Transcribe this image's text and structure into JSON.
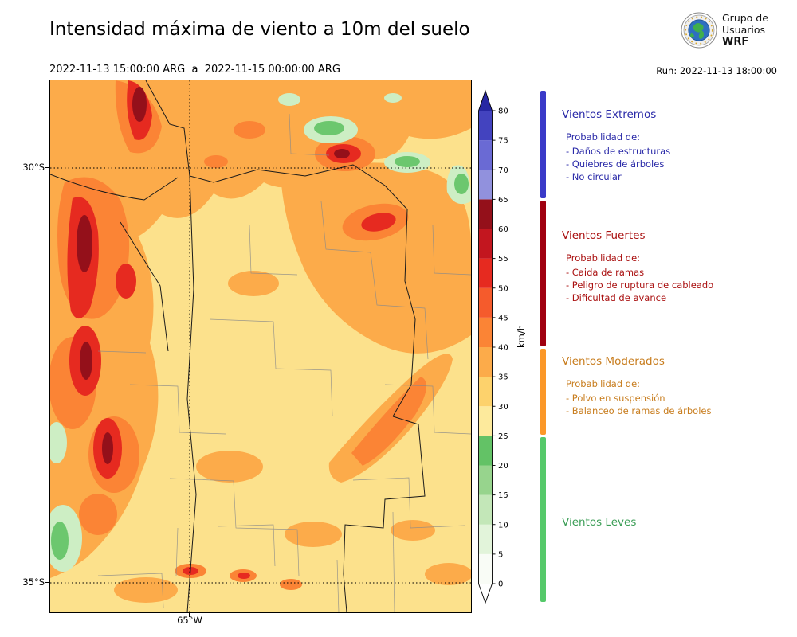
{
  "header": {
    "title": "Intensidad máxima de viento a 10m del suelo",
    "date_range": "2022-11-13 15:00:00 ARG  a  2022-11-15 00:00:00 ARG",
    "run_label": "Run: 2022-11-13 18:00:00",
    "logo": {
      "line1": "Grupo de",
      "line2": "Usuarios",
      "line3": "WRF"
    }
  },
  "map": {
    "lat_labels": [
      "30°S",
      "35°S"
    ],
    "lon_label": "65°W"
  },
  "colorbar": {
    "unit": "km/h",
    "tick_values": [
      0,
      5,
      10,
      15,
      20,
      25,
      30,
      35,
      40,
      45,
      50,
      55,
      60,
      65,
      70,
      75,
      80
    ],
    "segments": [
      {
        "from": 0,
        "to": 5,
        "color": "#f9fcf6"
      },
      {
        "from": 5,
        "to": 10,
        "color": "#e2f4da"
      },
      {
        "from": 10,
        "to": 15,
        "color": "#c3e7b8"
      },
      {
        "from": 15,
        "to": 20,
        "color": "#97d48d"
      },
      {
        "from": 20,
        "to": 25,
        "color": "#63c266"
      },
      {
        "from": 25,
        "to": 30,
        "color": "#fdea9c"
      },
      {
        "from": 30,
        "to": 35,
        "color": "#fdd26c"
      },
      {
        "from": 35,
        "to": 40,
        "color": "#fcab4a"
      },
      {
        "from": 40,
        "to": 45,
        "color": "#fb8435"
      },
      {
        "from": 45,
        "to": 50,
        "color": "#f55b2c"
      },
      {
        "from": 50,
        "to": 55,
        "color": "#e62a20"
      },
      {
        "from": 55,
        "to": 60,
        "color": "#c3161f"
      },
      {
        "from": 60,
        "to": 65,
        "color": "#94101a"
      },
      {
        "from": 65,
        "to": 70,
        "color": "#9191dd"
      },
      {
        "from": 70,
        "to": 75,
        "color": "#6a6ad4"
      },
      {
        "from": 75,
        "to": 80,
        "color": "#4343bf"
      }
    ],
    "over_color": "#2727a3",
    "under_color": "#ffffff"
  },
  "legend": {
    "categories": [
      {
        "id": "extremos",
        "title": "Vientos Extremos",
        "color": "#2a2aa8",
        "bar_color": "#3a3ac8",
        "range": [
          65,
          90
        ],
        "subtitle": "Probabilidad de:",
        "items": [
          "- Daños de estructuras",
          "- Quiebres de árboles",
          "- No circular"
        ]
      },
      {
        "id": "fuertes",
        "title": "Vientos Fuertes",
        "color": "#aa1111",
        "bar_color": "#a00010",
        "range": [
          40,
          65
        ],
        "subtitle": "Probabilidad de:",
        "items": [
          "- Caida de ramas",
          "- Peligro de ruptura de cableado",
          "- Dificultad de avance"
        ]
      },
      {
        "id": "moderados",
        "title": "Vientos Moderados",
        "color": "#c87d1e",
        "bar_color": "#fb9828",
        "range": [
          25,
          40
        ],
        "subtitle": "Probabilidad de:",
        "items": [
          "- Polvo en suspensión",
          "- Balanceo de ramas de árboles"
        ]
      },
      {
        "id": "leves",
        "title": "Vientos Leves",
        "color": "#3c9e57",
        "bar_color": "#55c96a",
        "range": [
          -4,
          25
        ],
        "subtitle": "",
        "items": []
      }
    ]
  }
}
